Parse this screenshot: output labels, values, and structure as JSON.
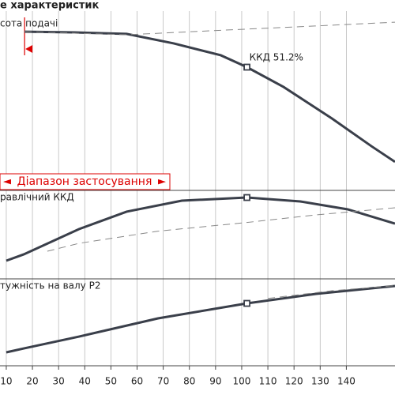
{
  "chart_data": {
    "type": "line",
    "title": "е характеристик",
    "xlim": [
      7.6,
      158.6
    ],
    "xticks": [
      10,
      20,
      30,
      40,
      50,
      60,
      70,
      80,
      90,
      100,
      110,
      120,
      130,
      140
    ],
    "grid": true,
    "color": "#3a3f4a",
    "range_label": "Діапазон застосування",
    "range_start": 17,
    "panels": [
      {
        "label": "сота подачі",
        "ylim": [
          0,
          100
        ],
        "series": [
          {
            "style": "solid",
            "x": [
              17,
              36,
              56,
              74,
              92,
              102,
              116,
              134.5,
              149.6,
              158.6
            ],
            "values": [
              91.7,
              91.3,
              90.4,
              84.9,
              78,
              71.1,
              59.6,
              41.3,
              25.2,
              16.1
            ]
          },
          {
            "style": "dashed",
            "x": [
              17,
              56,
              92,
              128,
              158.6
            ],
            "values": [
              91.7,
              89.9,
              92.5,
              95,
              97.2
            ]
          }
        ],
        "marker": {
          "x": 102,
          "y": 71.1
        },
        "annotation": "ККД  51.2%"
      },
      {
        "label": "равлічний ККД",
        "ylim": [
          0,
          100
        ],
        "series": [
          {
            "style": "solid",
            "x": [
              10,
              16.7,
              37.8,
              56,
              77.1,
              102,
              122.4,
              140.5,
              158.6
            ],
            "values": [
              20,
              27.3,
              56.4,
              76.4,
              89.1,
              92.7,
              88.2,
              79.1,
              62.7
            ]
          },
          {
            "style": "dashed",
            "x": [
              25.7,
              37.8,
              68,
              102,
              128.4,
              158.6
            ],
            "values": [
              30.9,
              40,
              54,
              64,
              72.7,
              80.9
            ]
          }
        ],
        "marker": {
          "x": 102,
          "y": 92.7
        }
      },
      {
        "label": "тужність на валу Р2",
        "ylim": [
          0,
          100
        ],
        "series": [
          {
            "style": "solid",
            "x": [
              10,
              16.7,
              37.8,
              68,
              102,
              128.4,
              158.6
            ],
            "values": [
              14.8,
              19.4,
              33.3,
              54.6,
              72.2,
              83.3,
              92.6
            ]
          },
          {
            "style": "dashed",
            "x": [
              110,
              134.5,
              158.6
            ],
            "values": [
              78,
              87,
              93
            ]
          }
        ],
        "marker": {
          "x": 102,
          "y": 72.2
        }
      }
    ]
  }
}
